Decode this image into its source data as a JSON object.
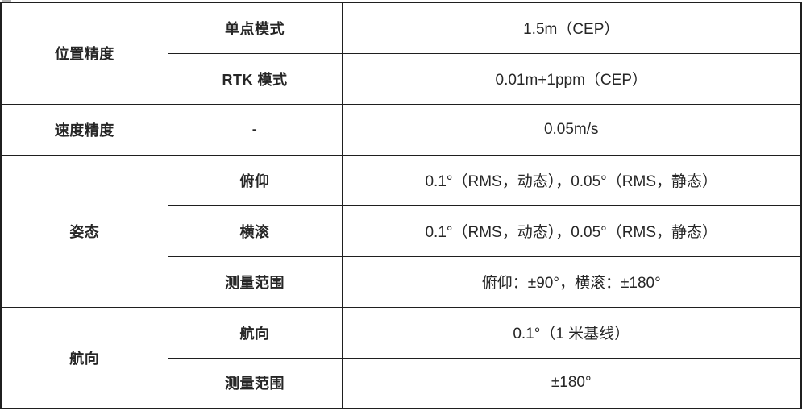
{
  "colors": {
    "border": "#1f1f1f",
    "text": "#262626",
    "background": "#ffffff"
  },
  "table": {
    "groups": [
      {
        "category": "位置精度",
        "rows": [
          {
            "param": "单点模式",
            "value": "1.5m（CEP）"
          },
          {
            "param": "RTK 模式",
            "value": "0.01m+1ppm（CEP）"
          }
        ]
      },
      {
        "category": "速度精度",
        "rows": [
          {
            "param": "-",
            "value": "0.05m/s"
          }
        ]
      },
      {
        "category": "姿态",
        "rows": [
          {
            "param": "俯仰",
            "value": "0.1°（RMS，动态），0.05°（RMS，静态）"
          },
          {
            "param": "横滚",
            "value": "0.1°（RMS，动态），0.05°（RMS，静态）"
          },
          {
            "param": "测量范围",
            "value": "俯仰：±90°，横滚：±180°"
          }
        ]
      },
      {
        "category": "航向",
        "rows": [
          {
            "param": "航向",
            "value": "0.1°（1 米基线）"
          },
          {
            "param": "测量范围",
            "value": "±180°"
          }
        ]
      }
    ]
  }
}
